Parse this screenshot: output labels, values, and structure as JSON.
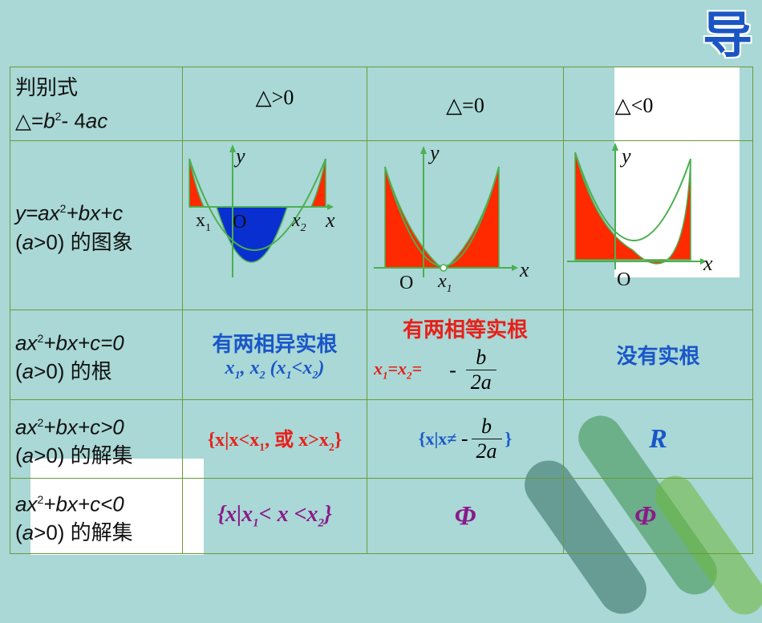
{
  "badge": "导",
  "headers": {
    "row0": {
      "line1": "判别式",
      "line2_pre": "△=",
      "line2_math": "b",
      "line2_sup": "2",
      "line2_post": "- 4",
      "line2_tail": "ac"
    },
    "row1": {
      "line1_math": "y=ax",
      "line1_sup": "2",
      "line1_post": "+bx+c",
      "line2_a": "a",
      "line2_post": ">0) 的图象"
    },
    "row2": {
      "line1_math": "ax",
      "line1_sup": "2",
      "line1_post": "+bx+c=0",
      "line2_a": "a",
      "line2_post": ">0) 的根"
    },
    "row3": {
      "line1_math": "ax",
      "line1_sup": "2",
      "line1_post": "+bx+c>0",
      "line2_a": "a",
      "line2_post": ">0) 的解集"
    },
    "row4": {
      "line1_math": "ax",
      "line1_sup": "2",
      "line1_post": "+bx+c<0",
      "line2_a": "a",
      "line2_post": ">0) 的解集"
    }
  },
  "cases": {
    "gt": "△>0",
    "eq": "△=0",
    "lt": "△<0"
  },
  "graphs": {
    "g1": {
      "y": "y",
      "x": "x",
      "x1": "x",
      "x1_sub": "1",
      "o": "O",
      "x2": "x",
      "x2_sub": "2"
    },
    "g2": {
      "y": "y",
      "x": "x",
      "o": "O",
      "x1": "x",
      "x1_sub": "1"
    },
    "g3": {
      "y": "y",
      "x": "x",
      "o": "O"
    }
  },
  "roots": {
    "gt_title": "有两相异实根",
    "gt_x1": "x",
    "gt_sub1": "1",
    "gt_sep": ", ",
    "gt_x2": "x",
    "gt_sub2": "2",
    "gt_paren_open": " (",
    "gt_px1": "x",
    "gt_psub1": "1",
    "gt_lt": "<",
    "gt_px2": "x",
    "gt_psub2": "2",
    "gt_paren_close": ")",
    "eq_title": "有两相等实根",
    "eq_x1": "x",
    "eq_sub1": "1",
    "eq_eq": "=",
    "eq_x2": "x",
    "eq_sub2": "2",
    "eq_eq2": "=",
    "eq_minus": "-",
    "eq_num": "b",
    "eq_den": "2a",
    "lt_text": "没有实根"
  },
  "gt_sets": {
    "gt_open": "{x|x<x",
    "gt_sub1": "1",
    "gt_mid": ", 或  x>x",
    "gt_sub2": "2",
    "gt_close": "}",
    "eq_open": "{x|x≠ ",
    "eq_minus": "-",
    "eq_num": "b",
    "eq_den": "2a",
    "eq_close": "}",
    "lt_text": "R"
  },
  "lt_sets": {
    "gt_open": "{x|x",
    "gt_sub1": "1",
    "gt_mid": "< x <x",
    "gt_sub2": "2",
    "gt_close": "}",
    "eq_text": "Φ",
    "lt_text": "Φ"
  },
  "colors": {
    "background": "#a9d8d6",
    "border": "#6b9a3a",
    "red_fill": "#ff2a00",
    "blue_fill": "#0a2fd0",
    "curve": "#4caf50"
  }
}
